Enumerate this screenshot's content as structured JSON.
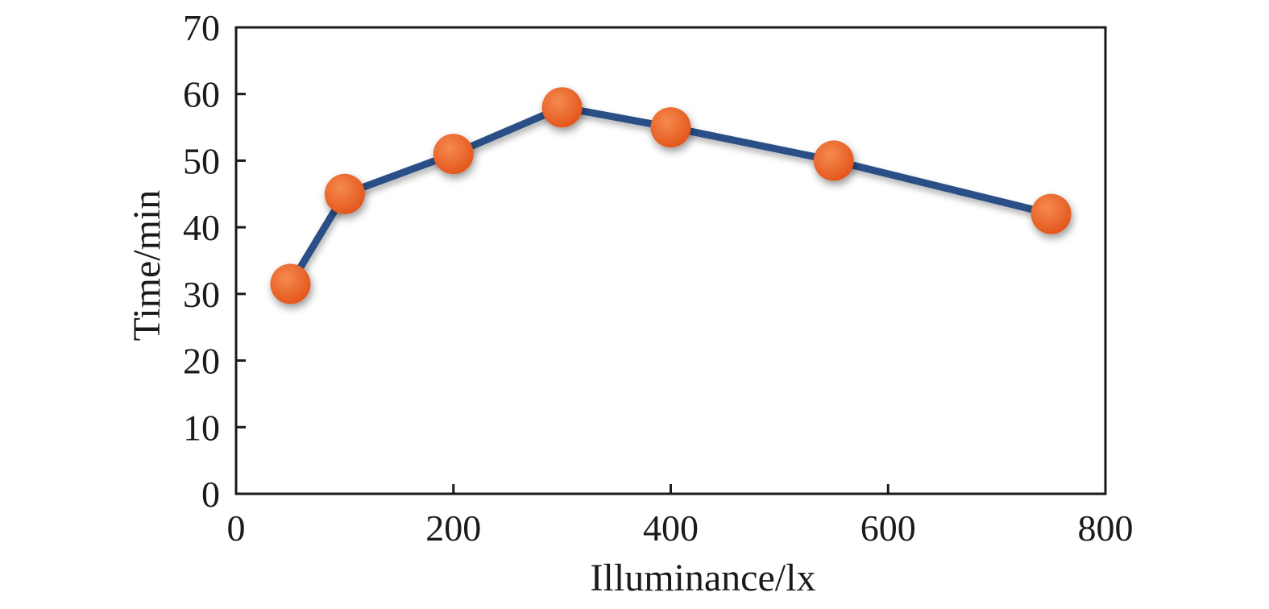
{
  "chart_data": {
    "type": "line",
    "title": "",
    "xlabel": "Illuminance/lx",
    "ylabel": "Time/min",
    "xlim": [
      0,
      800
    ],
    "ylim": [
      0,
      70
    ],
    "xticks": [
      0,
      200,
      400,
      600,
      800
    ],
    "yticks": [
      0,
      10,
      20,
      30,
      40,
      50,
      60,
      70
    ],
    "grid": false,
    "series": [
      {
        "x": [
          50,
          100,
          200,
          300,
          400,
          550,
          750
        ],
        "y": [
          31.5,
          45,
          51,
          58,
          55,
          50,
          42
        ]
      }
    ],
    "colors": {
      "line": "#2b4f86",
      "marker": "#e8622a",
      "axis": "#1a1a1a"
    }
  }
}
